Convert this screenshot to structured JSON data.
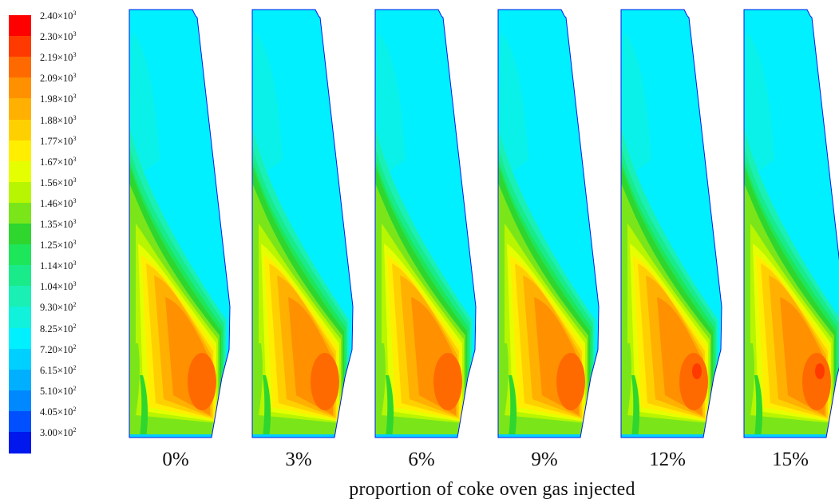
{
  "legend": {
    "title": "",
    "levels": [
      {
        "mantissa": "2.40",
        "exponent": "3",
        "color": "#ff0000"
      },
      {
        "mantissa": "2.30",
        "exponent": "3",
        "color": "#ff3a00"
      },
      {
        "mantissa": "2.19",
        "exponent": "3",
        "color": "#ff6a00"
      },
      {
        "mantissa": "2.09",
        "exponent": "3",
        "color": "#ff9000"
      },
      {
        "mantissa": "1.98",
        "exponent": "3",
        "color": "#ffb000"
      },
      {
        "mantissa": "1.88",
        "exponent": "3",
        "color": "#ffd000"
      },
      {
        "mantissa": "1.77",
        "exponent": "3",
        "color": "#ffee00"
      },
      {
        "mantissa": "1.67",
        "exponent": "3",
        "color": "#e6ff00"
      },
      {
        "mantissa": "1.56",
        "exponent": "3",
        "color": "#b8f500"
      },
      {
        "mantissa": "1.46",
        "exponent": "3",
        "color": "#7ae61a"
      },
      {
        "mantissa": "1.35",
        "exponent": "3",
        "color": "#2ed62e"
      },
      {
        "mantissa": "1.25",
        "exponent": "3",
        "color": "#1ee65a"
      },
      {
        "mantissa": "1.14",
        "exponent": "3",
        "color": "#1aeb8a"
      },
      {
        "mantissa": "1.04",
        "exponent": "3",
        "color": "#1af0b4"
      },
      {
        "mantissa": "9.30",
        "exponent": "2",
        "color": "#10f2dc"
      },
      {
        "mantissa": "8.25",
        "exponent": "2",
        "color": "#00f0ff"
      },
      {
        "mantissa": "7.20",
        "exponent": "2",
        "color": "#00d0ff"
      },
      {
        "mantissa": "6.15",
        "exponent": "2",
        "color": "#00b0ff"
      },
      {
        "mantissa": "5.10",
        "exponent": "2",
        "color": "#0088ff"
      },
      {
        "mantissa": "4.05",
        "exponent": "2",
        "color": "#0050ff"
      },
      {
        "mantissa": "3.00",
        "exponent": "2",
        "color": "#0018ee"
      }
    ]
  },
  "panels": [
    {
      "caption": "0%",
      "hotspot_intensity": 0.0
    },
    {
      "caption": "3%",
      "hotspot_intensity": 0.0
    },
    {
      "caption": "6%",
      "hotspot_intensity": 0.0
    },
    {
      "caption": "9%",
      "hotspot_intensity": 0.0
    },
    {
      "caption": "12%",
      "hotspot_intensity": 1.0
    },
    {
      "caption": "15%",
      "hotspot_intensity": 1.0
    }
  ],
  "x_caption": "proportion of coke oven gas injected"
}
